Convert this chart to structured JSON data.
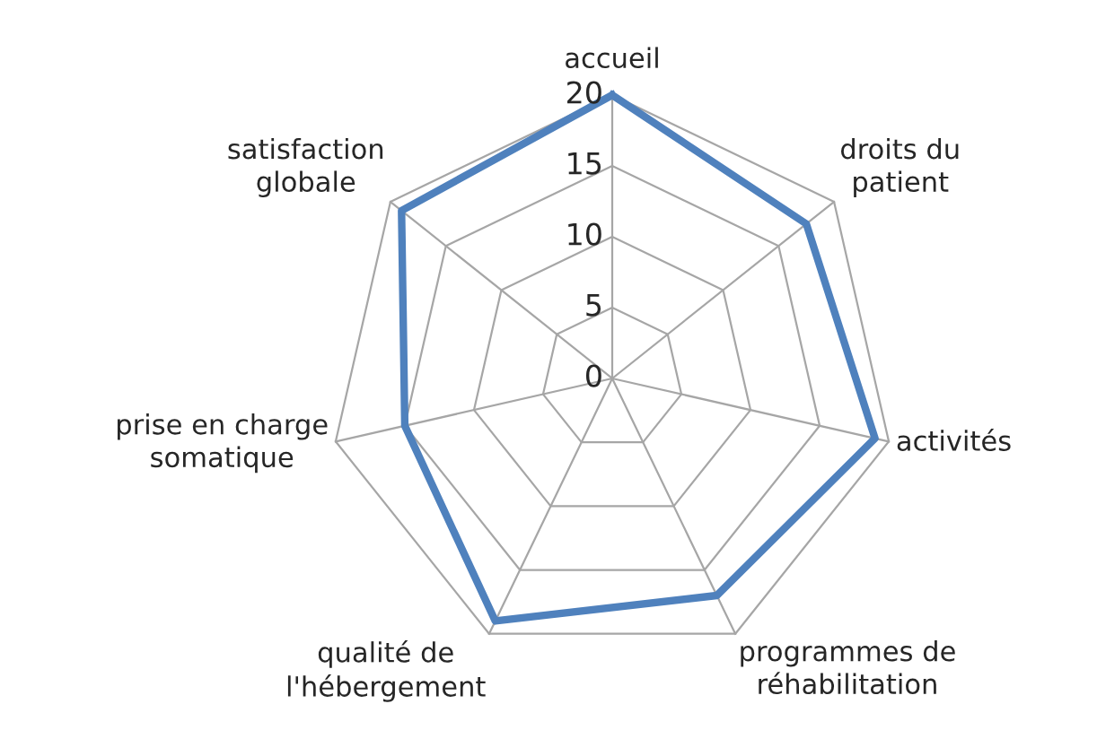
{
  "chart_data": {
    "type": "radar",
    "categories": [
      "accueil",
      "droits du patient",
      "activités",
      "programmes de réhabilitation",
      "qualité de l'hébergement",
      "prise en charge somatique",
      "satisfaction globale"
    ],
    "series": [
      {
        "color": "#4f81bd",
        "values": [
          20,
          17.5,
          19,
          17,
          19,
          15,
          19
        ]
      }
    ],
    "ylim": [
      0,
      20
    ],
    "yticks": [
      0,
      5,
      10,
      15,
      20
    ],
    "grid": true,
    "marker": "none",
    "line_style": "solid"
  }
}
